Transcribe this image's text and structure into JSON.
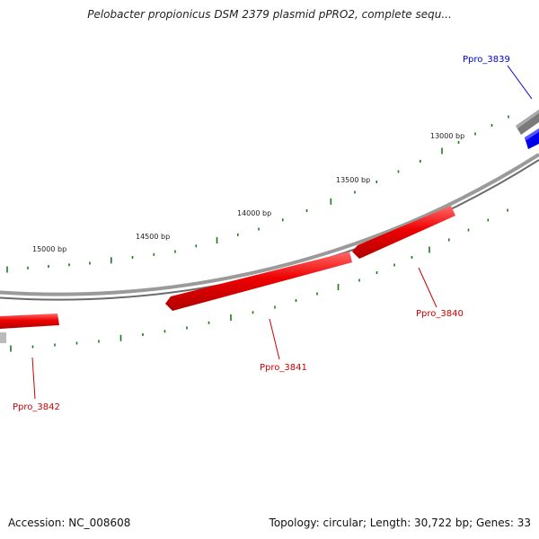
{
  "title": "Pelobacter propionicus DSM 2379 plasmid pPRO2, complete sequ...",
  "accession": "Accession: NC_008608",
  "stats": "Topology: circular; Length: 30,722 bp; Genes: 33",
  "ticks": [
    {
      "label": "13000 bp"
    },
    {
      "label": "13500 bp"
    },
    {
      "label": "14000 bp"
    },
    {
      "label": "14500 bp"
    },
    {
      "label": "15000 bp"
    }
  ],
  "genes": [
    {
      "name": "Ppro_3839",
      "color": "#0000cc",
      "strand": "+"
    },
    {
      "name": "Ppro_3840",
      "color": "#cc0000",
      "strand": "-"
    },
    {
      "name": "Ppro_3841",
      "color": "#cc0000",
      "strand": "-"
    },
    {
      "name": "Ppro_3842",
      "color": "#cc0000",
      "strand": "-"
    }
  ],
  "colors": {
    "backbone": "#888888",
    "reverse_gene": "#ee0000",
    "forward_gene": "#0000ee",
    "tick": "#1a7a1a"
  }
}
